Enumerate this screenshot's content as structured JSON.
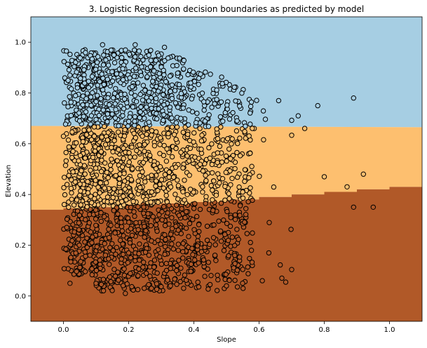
{
  "chart_data": {
    "type": "scatter",
    "title": "3. Logistic Regression decision boundaries as predicted by model",
    "xlabel": "Slope",
    "ylabel": "Elevation",
    "xlim": [
      -0.1,
      1.1
    ],
    "ylim": [
      -0.1,
      1.1
    ],
    "xticks": [
      0.0,
      0.2,
      0.4,
      0.6,
      0.8,
      1.0
    ],
    "xtick_labels": [
      "0.0",
      "0.2",
      "0.4",
      "0.6",
      "0.8",
      "1.0"
    ],
    "yticks": [
      0.0,
      0.2,
      0.4,
      0.6,
      0.8,
      1.0
    ],
    "ytick_labels": [
      "0.0",
      "0.2",
      "0.4",
      "0.6",
      "0.8",
      "1.0"
    ],
    "grid": false,
    "regions": [
      {
        "class": "high",
        "color": "#a6cee3"
      },
      {
        "class": "middle",
        "color": "#fdbf6f"
      },
      {
        "class": "low",
        "color": "#b15928"
      }
    ],
    "decision_boundaries": {
      "upper": [
        [
          -0.1,
          0.67
        ],
        [
          1.1,
          0.665
        ]
      ],
      "lower": [
        [
          -0.1,
          0.34
        ],
        [
          0.0,
          0.34
        ],
        [
          0.0,
          0.345
        ],
        [
          0.1,
          0.345
        ],
        [
          0.1,
          0.35
        ],
        [
          0.2,
          0.35
        ],
        [
          0.2,
          0.36
        ],
        [
          0.3,
          0.36
        ],
        [
          0.3,
          0.365
        ],
        [
          0.4,
          0.365
        ],
        [
          0.4,
          0.37
        ],
        [
          0.5,
          0.37
        ],
        [
          0.5,
          0.38
        ],
        [
          0.6,
          0.38
        ],
        [
          0.6,
          0.39
        ],
        [
          0.7,
          0.39
        ],
        [
          0.7,
          0.4
        ],
        [
          0.8,
          0.4
        ],
        [
          0.8,
          0.41
        ],
        [
          0.9,
          0.41
        ],
        [
          0.9,
          0.42
        ],
        [
          1.0,
          0.42
        ],
        [
          1.0,
          0.43
        ],
        [
          1.1,
          0.43
        ]
      ]
    },
    "point_style": {
      "edge_color": "#000000",
      "marker": "circle"
    },
    "sample_points": [
      [
        0.12,
        0.99
      ],
      [
        0.22,
        0.99
      ],
      [
        0.31,
        0.98
      ],
      [
        0.02,
        0.87
      ],
      [
        0.89,
        0.78
      ],
      [
        0.66,
        0.77
      ],
      [
        0.78,
        0.75
      ],
      [
        0.72,
        0.71
      ],
      [
        0.74,
        0.66
      ],
      [
        0.8,
        0.47
      ],
      [
        0.92,
        0.48
      ],
      [
        0.87,
        0.43
      ],
      [
        0.89,
        0.35
      ],
      [
        0.95,
        0.35
      ],
      [
        0.01,
        0.27
      ],
      [
        0.02,
        0.05
      ],
      [
        0.1,
        0.05
      ],
      [
        0.19,
        0.01
      ],
      [
        0.27,
        0.03
      ],
      [
        0.63,
        0.17
      ],
      [
        0.67,
        0.07
      ],
      [
        0.61,
        0.06
      ],
      [
        0.5,
        0.04
      ]
    ]
  }
}
